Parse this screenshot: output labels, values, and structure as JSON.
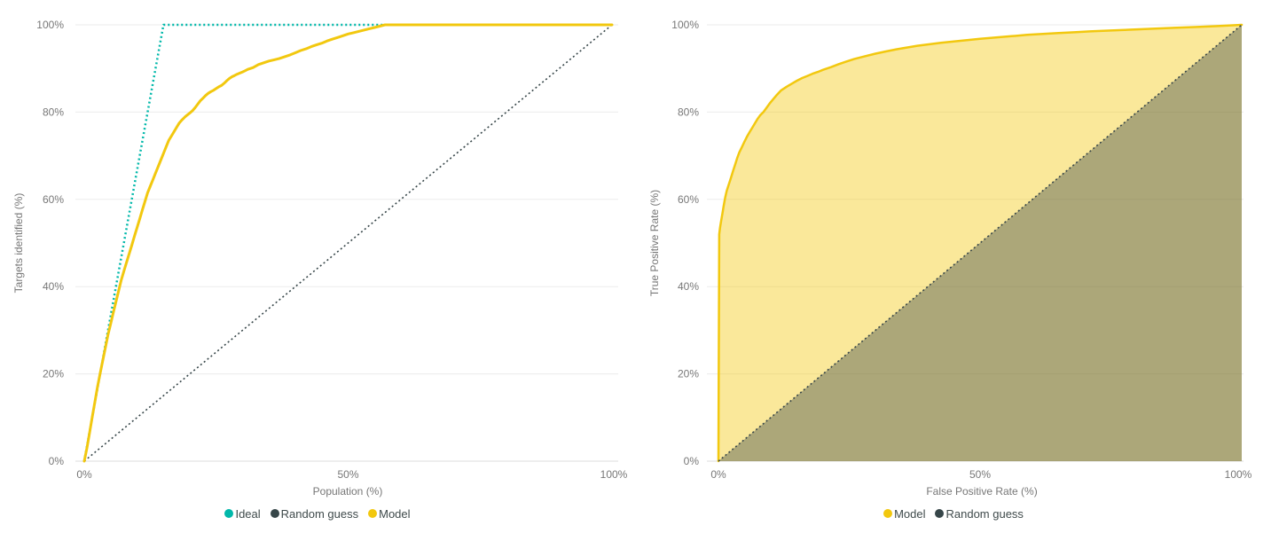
{
  "palette": {
    "teal": "#01B8AA",
    "dark": "#374649",
    "yellow": "#F2C80F",
    "gridline": "#EBEBEB",
    "axis_line": "#DCDCDC",
    "tick_text": "#777777",
    "axis_title_text": "#777777",
    "legend_text": "#3F4A4B",
    "background": "#FFFFFF"
  },
  "chart_data": [
    {
      "type": "line",
      "title": "",
      "xlabel": "Population (%)",
      "ylabel": "Targets identified (%)",
      "xlim": [
        0,
        100
      ],
      "ylim": [
        0,
        100
      ],
      "grid": "horizontal",
      "legend_position": "bottom",
      "x_tick_labels": [
        "0%",
        "50%",
        "100%"
      ],
      "y_tick_labels": [
        "0%",
        "20%",
        "40%",
        "60%",
        "80%",
        "100%"
      ],
      "series": [
        {
          "name": "Ideal",
          "color": "#01B8AA",
          "style": "dotted",
          "width": 2.5,
          "fill": false,
          "points": [
            [
              0,
              0
            ],
            [
              15,
              100
            ],
            [
              100,
              100
            ]
          ]
        },
        {
          "name": "Random guess",
          "color": "#374649",
          "style": "dotted",
          "width": 1.6,
          "fill": false,
          "points": [
            [
              0,
              0
            ],
            [
              100,
              100
            ]
          ]
        },
        {
          "name": "Model",
          "color": "#F2C80F",
          "style": "solid",
          "width": 3,
          "fill": false,
          "points": [
            [
              0,
              0
            ],
            [
              0.5,
              3
            ],
            [
              1,
              6.5
            ],
            [
              1.5,
              10
            ],
            [
              2,
              13.5
            ],
            [
              2.5,
              17
            ],
            [
              3,
              20
            ],
            [
              3.5,
              23
            ],
            [
              4,
              26
            ],
            [
              4.5,
              29
            ],
            [
              5,
              31.5
            ],
            [
              5.5,
              34
            ],
            [
              6,
              36.5
            ],
            [
              6.5,
              39
            ],
            [
              7,
              41.5
            ],
            [
              7.5,
              43.5
            ],
            [
              8,
              45.5
            ],
            [
              8.5,
              47.5
            ],
            [
              9,
              49.5
            ],
            [
              9.5,
              51.5
            ],
            [
              10,
              53.5
            ],
            [
              10.5,
              55.5
            ],
            [
              11,
              57.5
            ],
            [
              11.5,
              59.5
            ],
            [
              12,
              61.5
            ],
            [
              12.5,
              63
            ],
            [
              13,
              64.5
            ],
            [
              13.5,
              66
            ],
            [
              14,
              67.5
            ],
            [
              14.5,
              69
            ],
            [
              15,
              70.5
            ],
            [
              15.5,
              72
            ],
            [
              16,
              73.5
            ],
            [
              16.5,
              74.5
            ],
            [
              17,
              75.5
            ],
            [
              17.5,
              76.5
            ],
            [
              18,
              77.5
            ],
            [
              18.5,
              78.2
            ],
            [
              19,
              78.8
            ],
            [
              19.5,
              79.3
            ],
            [
              20,
              79.8
            ],
            [
              20.5,
              80.3
            ],
            [
              21,
              81
            ],
            [
              21.5,
              81.8
            ],
            [
              22,
              82.6
            ],
            [
              22.5,
              83.2
            ],
            [
              23,
              83.8
            ],
            [
              23.5,
              84.3
            ],
            [
              24,
              84.7
            ],
            [
              24.5,
              85
            ],
            [
              25,
              85.4
            ],
            [
              25.5,
              85.8
            ],
            [
              26,
              86.1
            ],
            [
              26.5,
              86.6
            ],
            [
              27,
              87.2
            ],
            [
              27.5,
              87.7
            ],
            [
              28,
              88.1
            ],
            [
              28.5,
              88.4
            ],
            [
              29,
              88.7
            ],
            [
              30,
              89.2
            ],
            [
              30.5,
              89.5
            ],
            [
              31,
              89.8
            ],
            [
              32,
              90.2
            ],
            [
              33,
              90.9
            ],
            [
              34,
              91.3
            ],
            [
              35,
              91.7
            ],
            [
              36,
              92
            ],
            [
              37,
              92.3
            ],
            [
              38,
              92.7
            ],
            [
              39,
              93.1
            ],
            [
              40,
              93.6
            ],
            [
              41,
              94.1
            ],
            [
              42,
              94.5
            ],
            [
              43,
              95
            ],
            [
              44,
              95.4
            ],
            [
              45,
              95.8
            ],
            [
              46,
              96.3
            ],
            [
              47,
              96.7
            ],
            [
              48,
              97.1
            ],
            [
              49,
              97.5
            ],
            [
              50,
              97.9
            ],
            [
              51,
              98.2
            ],
            [
              52,
              98.5
            ],
            [
              53,
              98.8
            ],
            [
              54,
              99.1
            ],
            [
              55,
              99.4
            ],
            [
              56,
              99.7
            ],
            [
              57,
              100
            ],
            [
              100,
              100
            ]
          ]
        }
      ]
    },
    {
      "type": "area",
      "title": "",
      "xlabel": "False Positive Rate (%)",
      "ylabel": "True Positive Rate (%)",
      "xlim": [
        0,
        100
      ],
      "ylim": [
        0,
        100
      ],
      "grid": "horizontal",
      "legend_position": "bottom",
      "x_tick_labels": [
        "0%",
        "50%",
        "100%"
      ],
      "y_tick_labels": [
        "0%",
        "20%",
        "40%",
        "60%",
        "80%",
        "100%"
      ],
      "series": [
        {
          "name": "Model",
          "color": "#F2C80F",
          "style": "solid",
          "width": 2.5,
          "fill": true,
          "fill_opacity": 0.42,
          "points": [
            [
              0,
              0
            ],
            [
              0.15,
              52
            ],
            [
              0.3,
              53.5
            ],
            [
              0.5,
              55
            ],
            [
              0.8,
              57
            ],
            [
              1,
              58.5
            ],
            [
              1.3,
              60.5
            ],
            [
              1.6,
              62
            ],
            [
              2,
              63.5
            ],
            [
              2.4,
              65
            ],
            [
              2.8,
              66.5
            ],
            [
              3.2,
              68
            ],
            [
              3.6,
              69.5
            ],
            [
              4,
              70.8
            ],
            [
              4.5,
              72
            ],
            [
              5,
              73.3
            ],
            [
              5.5,
              74.5
            ],
            [
              6,
              75.5
            ],
            [
              6.5,
              76.5
            ],
            [
              7,
              77.5
            ],
            [
              7.5,
              78.5
            ],
            [
              8,
              79.3
            ],
            [
              8.6,
              80
            ],
            [
              9.2,
              81
            ],
            [
              9.8,
              82
            ],
            [
              10.5,
              83
            ],
            [
              11.2,
              84
            ],
            [
              12,
              85
            ],
            [
              13,
              85.8
            ],
            [
              14,
              86.5
            ],
            [
              15,
              87.2
            ],
            [
              16,
              87.8
            ],
            [
              17,
              88.3
            ],
            [
              18,
              88.8
            ],
            [
              19,
              89.2
            ],
            [
              20,
              89.7
            ],
            [
              21.5,
              90.3
            ],
            [
              23,
              91
            ],
            [
              24.5,
              91.6
            ],
            [
              26,
              92.2
            ],
            [
              28,
              92.8
            ],
            [
              30,
              93.4
            ],
            [
              32,
              93.9
            ],
            [
              34,
              94.4
            ],
            [
              36,
              94.8
            ],
            [
              38,
              95.2
            ],
            [
              40,
              95.5
            ],
            [
              42.5,
              95.9
            ],
            [
              45,
              96.2
            ],
            [
              47.5,
              96.5
            ],
            [
              50,
              96.8
            ],
            [
              53,
              97.1
            ],
            [
              56,
              97.4
            ],
            [
              59,
              97.7
            ],
            [
              62,
              97.9
            ],
            [
              65,
              98.1
            ],
            [
              68,
              98.3
            ],
            [
              71,
              98.5
            ],
            [
              75,
              98.7
            ],
            [
              79,
              98.9
            ],
            [
              83,
              99.1
            ],
            [
              87,
              99.3
            ],
            [
              91,
              99.5
            ],
            [
              95,
              99.7
            ],
            [
              100,
              100
            ]
          ]
        },
        {
          "name": "Random guess",
          "color": "#374649",
          "style": "dotted",
          "width": 1.6,
          "fill": true,
          "fill_opacity": 0.4,
          "points": [
            [
              0,
              0
            ],
            [
              100,
              100
            ]
          ]
        }
      ]
    }
  ]
}
